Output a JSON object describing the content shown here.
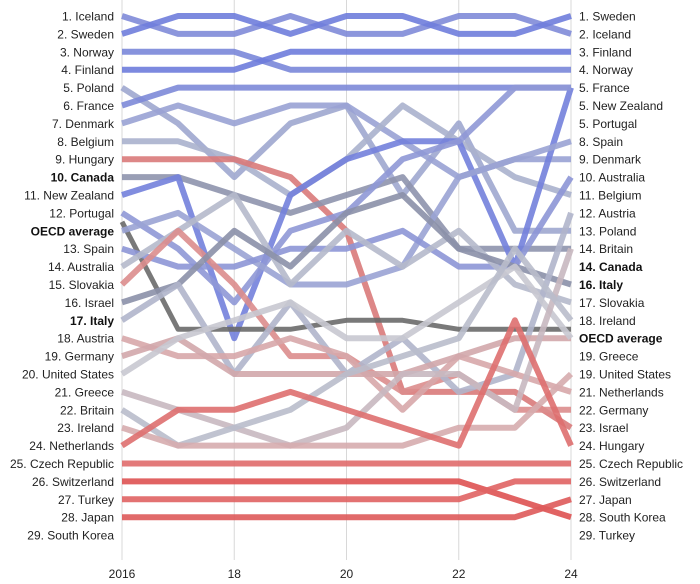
{
  "chart_data": {
    "type": "line",
    "title": "",
    "xlabel": "",
    "ylabel": "",
    "x": [
      2016,
      2017,
      2018,
      2019,
      2020,
      2021,
      2022,
      2023,
      2024
    ],
    "x_ticks": [
      "2016",
      "18",
      "20",
      "22",
      "24"
    ],
    "y_axis": "rank (1 = top)",
    "ylim": [
      1,
      29
    ],
    "grid": "vertical lines at 2016, 2018, 2020, 2022, 2024",
    "left_labels": [
      "1. Iceland",
      "2. Sweden",
      "3. Norway",
      "4. Finland",
      "5. Poland",
      "6. France",
      "7. Denmark",
      "8. Belgium",
      "9. Hungary",
      "10. Canada",
      "11. New Zealand",
      "12. Portugal",
      "OECD average",
      "13. Spain",
      "14. Australia",
      "15. Slovakia",
      "16. Israel",
      "17. Italy",
      "18. Austria",
      "19. Germany",
      "20. United States",
      "21. Greece",
      "22. Britain",
      "23. Ireland",
      "24. Netherlands",
      "25. Czech Republic",
      "26. Switzerland",
      "27. Turkey",
      "28. Japan",
      "29. South Korea"
    ],
    "right_labels": [
      "1. Sweden",
      "2. Iceland",
      "3. Finland",
      "4. Norway",
      "5. France",
      "5. New Zealand",
      "5. Portugal",
      "8. Spain",
      "9. Denmark",
      "10. Australia",
      "11. Belgium",
      "12. Austria",
      "13. Poland",
      "14. Britain",
      "14. Canada",
      "16. Italy",
      "17. Slovakia",
      "18. Ireland",
      "OECD average",
      "19. Greece",
      "19. United States",
      "21. Netherlands",
      "22. Germany",
      "23. Israel",
      "24. Hungary",
      "25. Czech Republic",
      "26. Switzerland",
      "27. Japan",
      "28. South Korea",
      "29. Turkey"
    ],
    "bold_labels": [
      "10. Canada",
      "17. Italy",
      "OECD average",
      "14. Canada",
      "16. Italy"
    ],
    "series": [
      {
        "name": "Iceland",
        "values": [
          1,
          2,
          2,
          1,
          2,
          2,
          1,
          1,
          2
        ],
        "color": "#7f8bd8"
      },
      {
        "name": "Sweden",
        "values": [
          2,
          1,
          1,
          2,
          1,
          1,
          2,
          2,
          1
        ],
        "color": "#6f7ddb"
      },
      {
        "name": "Norway",
        "values": [
          3,
          3,
          3,
          4,
          4,
          4,
          4,
          4,
          4
        ],
        "color": "#7a87d9"
      },
      {
        "name": "Finland",
        "values": [
          4,
          4,
          4,
          3,
          3,
          3,
          3,
          3,
          3
        ],
        "color": "#6e7cdc"
      },
      {
        "name": "Poland",
        "values": [
          5,
          7,
          10,
          7,
          6,
          11,
          7,
          13,
          13
        ],
        "color": "#9fa7cf"
      },
      {
        "name": "France",
        "values": [
          6,
          5,
          5,
          5,
          5,
          5,
          5,
          5,
          5
        ],
        "color": "#7d8ad8"
      },
      {
        "name": "Denmark",
        "values": [
          7,
          6,
          7,
          6,
          6,
          8,
          10,
          9,
          9
        ],
        "color": "#99a2d4"
      },
      {
        "name": "Belgium",
        "values": [
          8,
          8,
          9,
          11,
          9,
          6,
          8,
          10,
          11
        ],
        "color": "#aab1cd"
      },
      {
        "name": "Hungary",
        "values": [
          9,
          9,
          9,
          10,
          13,
          22,
          22,
          22,
          24
        ],
        "color": "#d97a7a"
      },
      {
        "name": "Canada",
        "values": [
          10,
          10,
          11,
          12,
          11,
          10,
          14,
          14,
          14
        ],
        "color": "#8e94ad"
      },
      {
        "name": "New Zealand",
        "values": [
          11,
          10,
          19,
          11,
          9,
          8,
          8,
          15,
          5
        ],
        "color": "#7381db"
      },
      {
        "name": "Portugal",
        "values": [
          12,
          14,
          17,
          13,
          12,
          9,
          8,
          5,
          5
        ],
        "color": "#8f98d6"
      },
      {
        "name": "OECD average",
        "values": [
          12.5,
          18.5,
          18.5,
          18.5,
          18,
          18,
          18.5,
          18.5,
          18.5
        ],
        "color": "#6a6a6a"
      },
      {
        "name": "Spain",
        "values": [
          13,
          12,
          14,
          16,
          16,
          15,
          10,
          9,
          8
        ],
        "color": "#9aa3d4"
      },
      {
        "name": "Australia",
        "values": [
          14,
          15,
          15,
          14,
          14,
          13,
          15,
          15,
          10
        ],
        "color": "#8d96d6"
      },
      {
        "name": "Slovakia",
        "values": [
          15,
          13,
          11,
          16,
          13,
          15,
          13,
          16,
          17
        ],
        "color": "#b5b9cb"
      },
      {
        "name": "Israel",
        "values": [
          16,
          13,
          16,
          20,
          20,
          22,
          21,
          23,
          23
        ],
        "color": "#db8d8d"
      },
      {
        "name": "Italy",
        "values": [
          17,
          16,
          13,
          15,
          12,
          11,
          14,
          15,
          16
        ],
        "color": "#8b90a8"
      },
      {
        "name": "Austria",
        "values": [
          18,
          16,
          21,
          17,
          21,
          19,
          22,
          21,
          12
        ],
        "color": "#b0b5cb"
      },
      {
        "name": "Germany",
        "values": [
          19,
          20,
          20,
          19,
          20,
          23,
          20,
          21,
          22
        ],
        "color": "#d7a7aa"
      },
      {
        "name": "United States",
        "values": [
          20,
          19,
          21,
          21,
          21,
          21,
          20,
          19,
          19
        ],
        "color": "#d2a7ab"
      },
      {
        "name": "Greece",
        "values": [
          21,
          19,
          18,
          17,
          19,
          19,
          17,
          15,
          19
        ],
        "color": "#c8c8d0"
      },
      {
        "name": "Britain",
        "values": [
          22,
          23,
          24,
          25,
          24,
          21,
          21,
          23,
          14
        ],
        "color": "#c8b8c0"
      },
      {
        "name": "Ireland",
        "values": [
          23,
          25,
          24,
          23,
          21,
          20,
          19,
          14,
          18
        ],
        "color": "#b9bccb"
      },
      {
        "name": "Netherlands",
        "values": [
          24,
          25,
          25,
          25,
          25,
          25,
          24,
          24,
          21
        ],
        "color": "#d6acae"
      },
      {
        "name": "Czech Republic",
        "values": [
          25,
          23,
          23,
          22,
          23,
          24,
          25,
          18,
          25
        ],
        "color": "#de6f6f"
      },
      {
        "name": "Switzerland",
        "values": [
          26,
          26,
          26,
          26,
          26,
          26,
          26,
          26,
          26
        ],
        "color": "#e06b6b"
      },
      {
        "name": "Turkey",
        "values": [
          27,
          27,
          27,
          27,
          27,
          27,
          27,
          28,
          29
        ],
        "color": "#de5252"
      },
      {
        "name": "Japan",
        "values": [
          28,
          28,
          28,
          28,
          28,
          28,
          28,
          27,
          27
        ],
        "color": "#e06363"
      },
      {
        "name": "South Korea",
        "values": [
          29,
          29,
          29,
          29,
          29,
          29,
          29,
          29,
          28
        ],
        "color": "#de5a5a"
      }
    ]
  }
}
